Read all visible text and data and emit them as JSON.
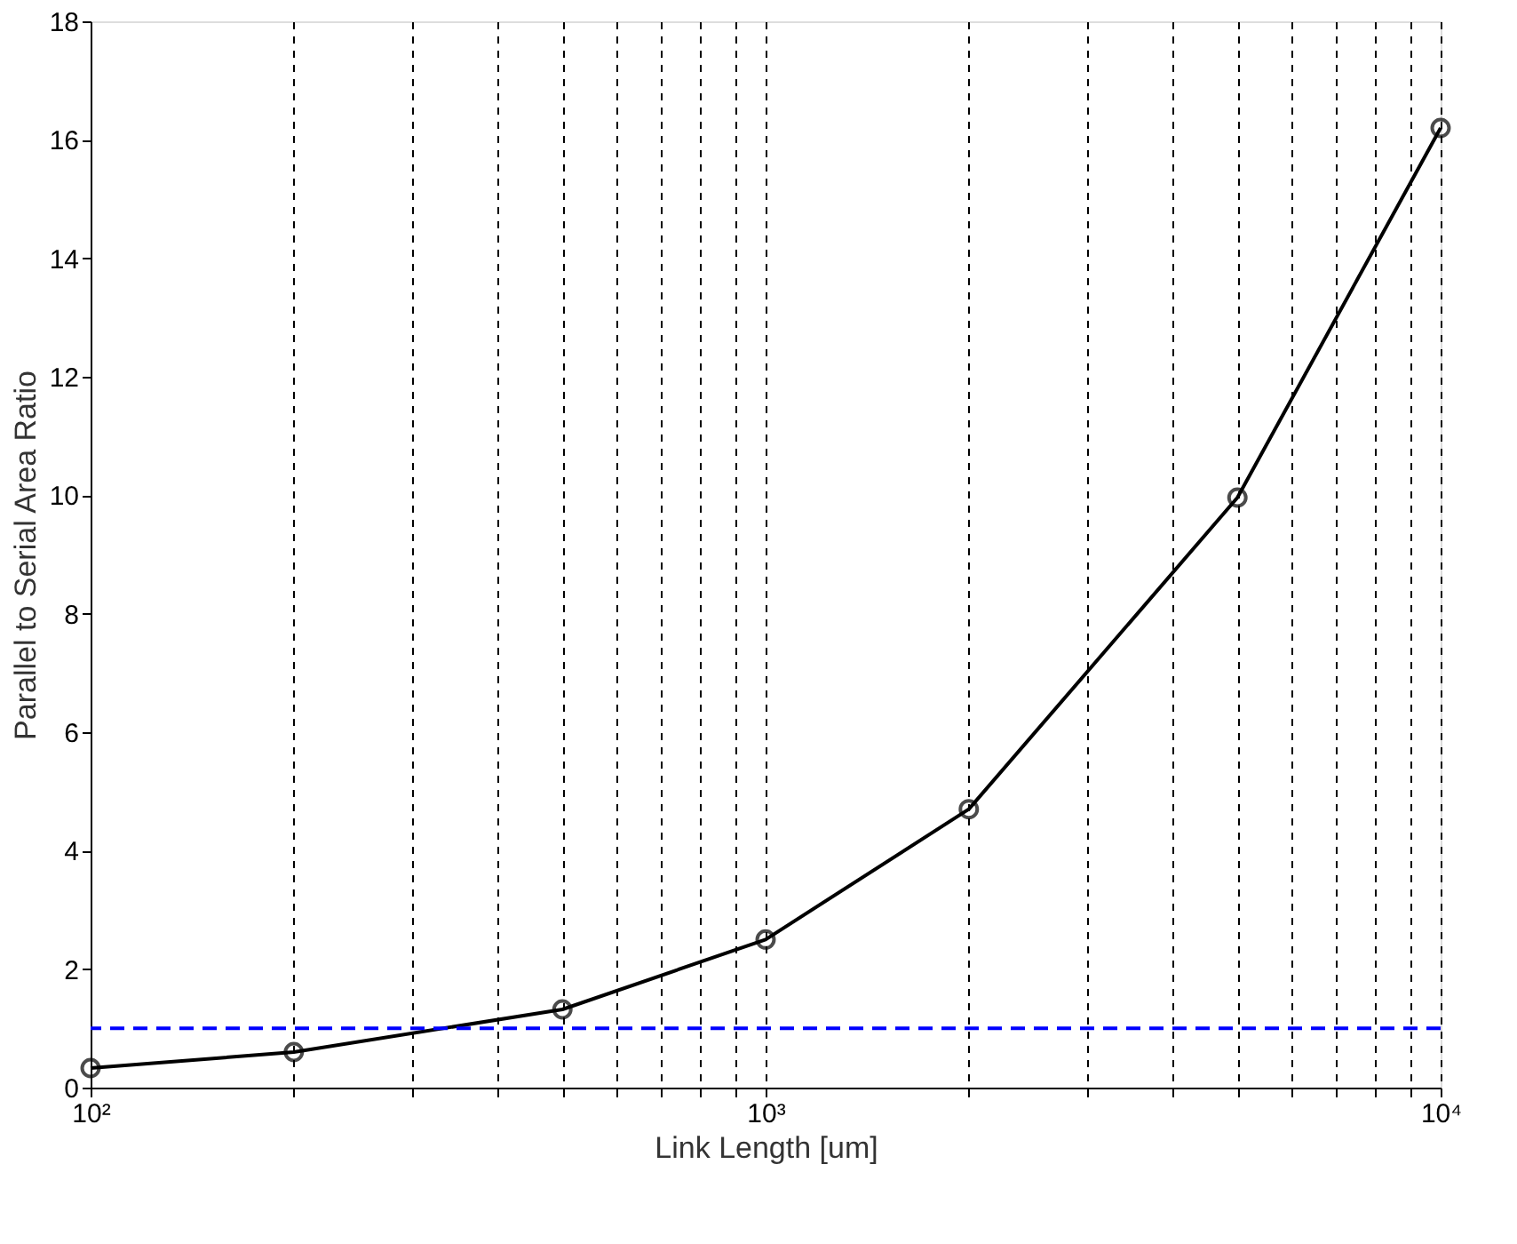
{
  "chart_data": {
    "type": "line",
    "xlabel": "Link Length [um]",
    "ylabel": "Parallel to Serial Area Ratio",
    "log": "x",
    "grid": "x",
    "marker": "circle",
    "line_style": "solid",
    "x": [
      100,
      200,
      500,
      1000,
      2000,
      5000,
      10000
    ],
    "series": [
      {
        "color": "#000000",
        "values": [
          0.33,
          0.6,
          1.32,
          2.5,
          4.7,
          9.96,
          16.2
        ]
      }
    ],
    "xlim": [
      100,
      10000
    ],
    "xticks": [
      {
        "value": 100,
        "label": "10²"
      },
      {
        "value": 200,
        "label": null
      },
      {
        "value": 300,
        "label": null
      },
      {
        "value": 400,
        "label": null
      },
      {
        "value": 500,
        "label": null
      },
      {
        "value": 600,
        "label": null
      },
      {
        "value": 700,
        "label": null
      },
      {
        "value": 800,
        "label": null
      },
      {
        "value": 900,
        "label": null
      },
      {
        "value": 1000,
        "label": "10³"
      },
      {
        "value": 2000,
        "label": null
      },
      {
        "value": 3000,
        "label": null
      },
      {
        "value": 4000,
        "label": null
      },
      {
        "value": 5000,
        "label": null
      },
      {
        "value": 6000,
        "label": null
      },
      {
        "value": 7000,
        "label": null
      },
      {
        "value": 8000,
        "label": null
      },
      {
        "value": 9000,
        "label": null
      },
      {
        "value": 10000,
        "label": "10⁴"
      }
    ],
    "ylim": [
      0,
      18
    ],
    "yticks": [
      0,
      2,
      4,
      6,
      8,
      10,
      12,
      14,
      16,
      18
    ],
    "ref_lines": [
      {
        "axis": "y",
        "value": 1,
        "label": null,
        "color": "#0000ff",
        "line_style": "dashed"
      }
    ]
  }
}
